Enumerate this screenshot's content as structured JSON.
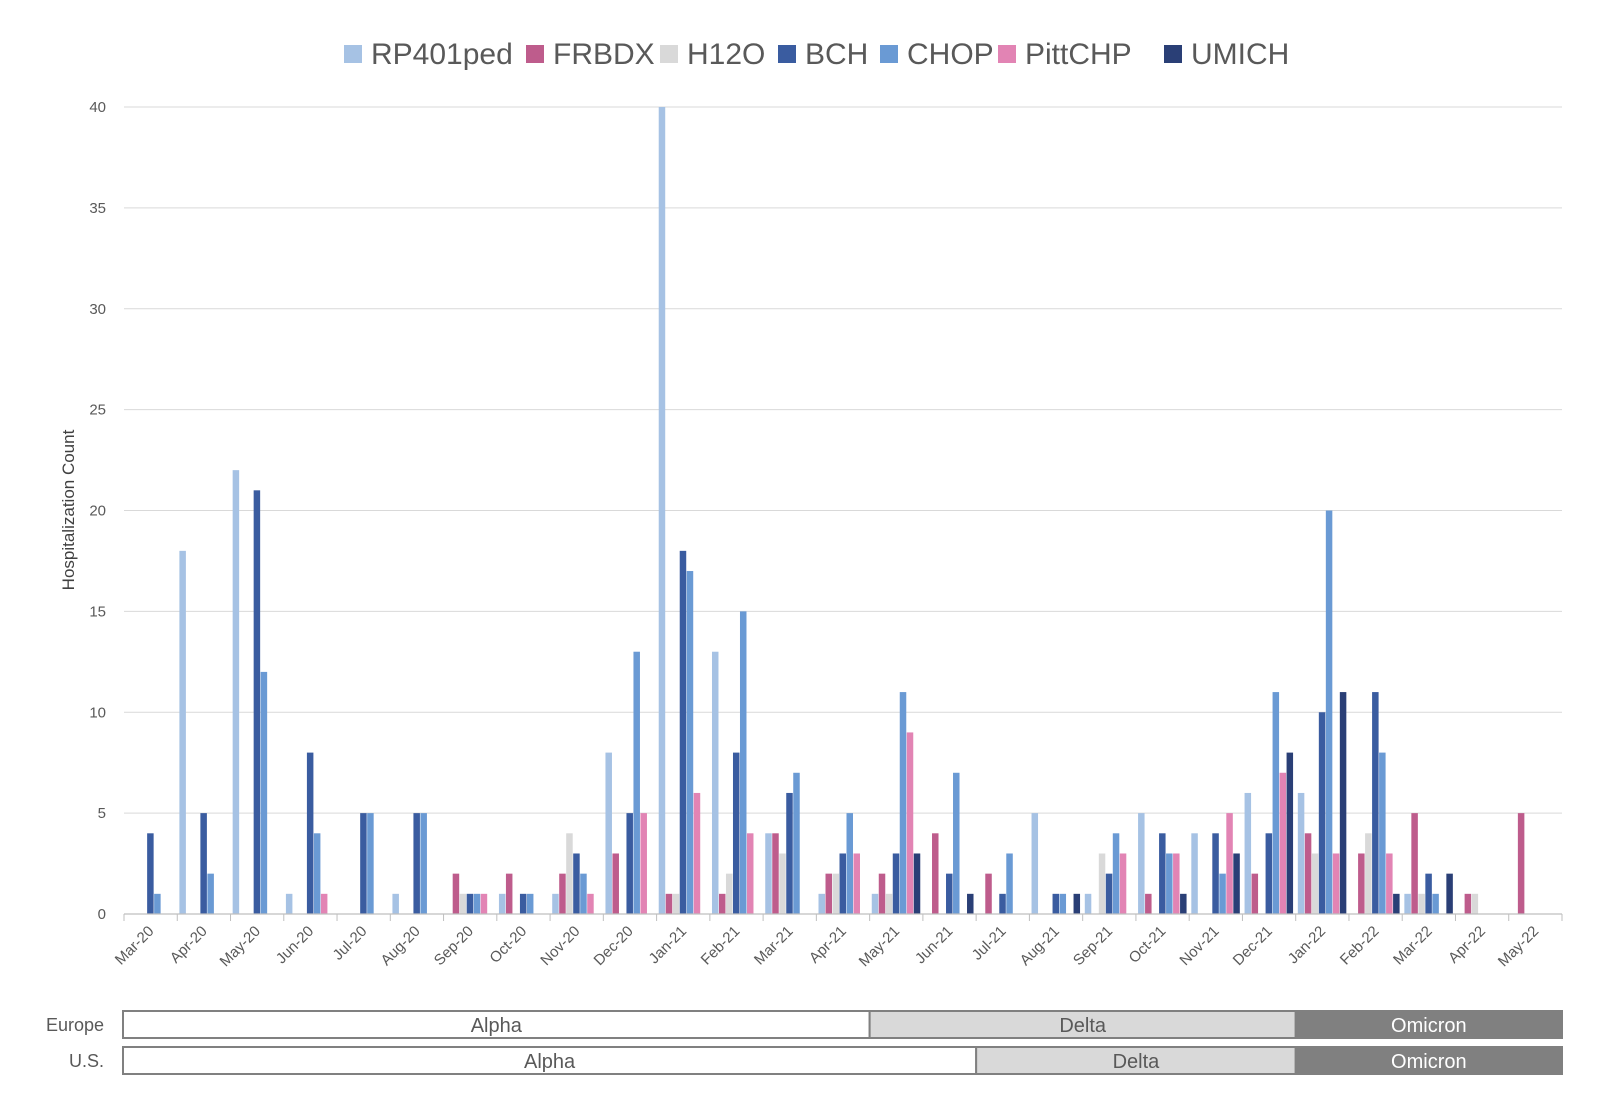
{
  "chart_data": {
    "type": "bar",
    "ylabel": "Hospitalization Count",
    "ylim": [
      0,
      40
    ],
    "yticks": [
      0,
      5,
      10,
      15,
      20,
      25,
      30,
      35,
      40
    ],
    "grid": true,
    "legend_position": "top",
    "categories": [
      "Mar-20",
      "Apr-20",
      "May-20",
      "Jun-20",
      "Jul-20",
      "Aug-20",
      "Sep-20",
      "Oct-20",
      "Nov-20",
      "Dec-20",
      "Jan-21",
      "Feb-21",
      "Mar-21",
      "Apr-21",
      "May-21",
      "Jun-21",
      "Jul-21",
      "Aug-21",
      "Sep-21",
      "Oct-21",
      "Nov-21",
      "Dec-21",
      "Jan-22",
      "Feb-22",
      "Mar-22",
      "Apr-22",
      "May-22"
    ],
    "series": [
      {
        "name": "RP401ped",
        "color": "#a6c2e4",
        "values": [
          0,
          18,
          22,
          1,
          0,
          1,
          0,
          1,
          1,
          8,
          40,
          13,
          4,
          1,
          1,
          0,
          0,
          5,
          1,
          5,
          4,
          6,
          6,
          0,
          1,
          0,
          0
        ]
      },
      {
        "name": "FRBDX",
        "color": "#be5c8c",
        "values": [
          0,
          0,
          0,
          0,
          0,
          0,
          2,
          2,
          2,
          3,
          1,
          1,
          4,
          2,
          2,
          4,
          2,
          0,
          0,
          1,
          0,
          2,
          4,
          3,
          5,
          1,
          5
        ]
      },
      {
        "name": "H12O",
        "color": "#d9d9d9",
        "values": [
          0,
          0,
          0,
          0,
          0,
          0,
          1,
          0,
          4,
          0,
          1,
          2,
          3,
          2,
          1,
          0,
          0,
          0,
          3,
          0,
          0,
          0,
          3,
          4,
          1,
          1,
          0
        ]
      },
      {
        "name": "BCH",
        "color": "#3a5ca0",
        "values": [
          4,
          5,
          21,
          8,
          5,
          5,
          1,
          1,
          3,
          5,
          18,
          8,
          6,
          3,
          3,
          2,
          1,
          1,
          2,
          4,
          4,
          4,
          10,
          11,
          2,
          0,
          0
        ]
      },
      {
        "name": "CHOP",
        "color": "#6a9ad4",
        "values": [
          1,
          2,
          12,
          4,
          5,
          5,
          1,
          1,
          2,
          13,
          17,
          15,
          7,
          5,
          11,
          7,
          3,
          1,
          4,
          3,
          2,
          11,
          20,
          8,
          1,
          0,
          0
        ]
      },
      {
        "name": "PittCHP",
        "color": "#e284b4",
        "values": [
          0,
          0,
          0,
          1,
          0,
          0,
          1,
          0,
          1,
          5,
          6,
          4,
          0,
          3,
          9,
          0,
          0,
          0,
          3,
          3,
          5,
          7,
          3,
          3,
          0,
          0,
          0
        ]
      },
      {
        "name": "UMICH",
        "color": "#2a3f76",
        "values": [
          0,
          0,
          0,
          0,
          0,
          0,
          0,
          0,
          0,
          0,
          0,
          0,
          0,
          0,
          3,
          1,
          0,
          1,
          0,
          1,
          3,
          8,
          11,
          1,
          2,
          0,
          0
        ]
      }
    ]
  },
  "variant_bands": [
    {
      "label": "Europe",
      "segments": [
        {
          "label": "Alpha",
          "from": "Mar-20",
          "to": "Apr-21",
          "fill": "#ffffff",
          "text_color": "#595959"
        },
        {
          "label": "Delta",
          "from": "May-21",
          "to": "Dec-21",
          "fill": "#d9d9d9",
          "text_color": "#595959"
        },
        {
          "label": "Omicron",
          "from": "Jan-22",
          "to": "May-22",
          "fill": "#808080",
          "text_color": "#ffffff"
        }
      ]
    },
    {
      "label": "U.S.",
      "segments": [
        {
          "label": "Alpha",
          "from": "Mar-20",
          "to": "Jun-21",
          "fill": "#ffffff",
          "text_color": "#595959"
        },
        {
          "label": "Delta",
          "from": "Jul-21",
          "to": "Dec-21",
          "fill": "#d9d9d9",
          "text_color": "#595959"
        },
        {
          "label": "Omicron",
          "from": "Jan-22",
          "to": "May-22",
          "fill": "#808080",
          "text_color": "#ffffff"
        }
      ]
    }
  ]
}
